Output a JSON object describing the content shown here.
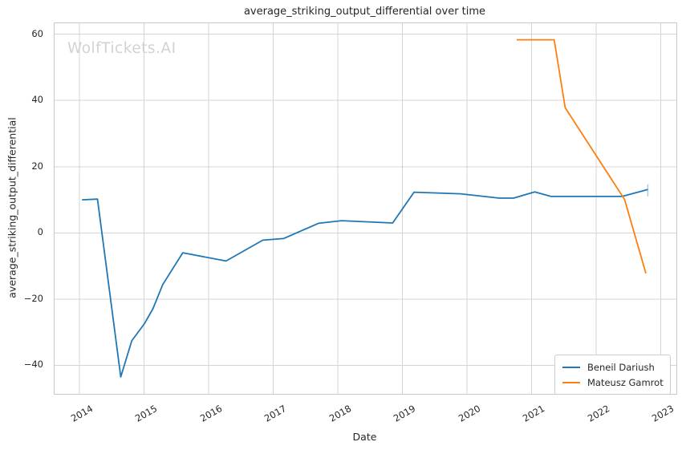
{
  "watermark": "WolfTickets.AI",
  "chart_data": {
    "type": "line",
    "title": "average_striking_output_differential over time",
    "xlabel": "Date",
    "ylabel": "average_striking_output_differential",
    "grid": true,
    "legend_position": "lower right",
    "xlim": [
      2013.615,
      2023.242
    ],
    "ylim": [
      -48.6,
      63.3
    ],
    "xticks": [
      {
        "v": 2014,
        "label": "2014"
      },
      {
        "v": 2015,
        "label": "2015"
      },
      {
        "v": 2016,
        "label": "2016"
      },
      {
        "v": 2017,
        "label": "2017"
      },
      {
        "v": 2018,
        "label": "2018"
      },
      {
        "v": 2019,
        "label": "2019"
      },
      {
        "v": 2020,
        "label": "2020"
      },
      {
        "v": 2021,
        "label": "2021"
      },
      {
        "v": 2022,
        "label": "2022"
      },
      {
        "v": 2023,
        "label": "2023"
      }
    ],
    "yticks": [
      {
        "v": 60,
        "label": "60"
      },
      {
        "v": 40,
        "label": "40"
      },
      {
        "v": 20,
        "label": "20"
      },
      {
        "v": 0,
        "label": "0"
      },
      {
        "v": -20,
        "label": "−20"
      },
      {
        "v": -40,
        "label": "−40"
      }
    ],
    "grid_color": "#d4d4d4",
    "series": [
      {
        "name": "Beneil Dariush",
        "color": "#1f77b4",
        "points": [
          [
            2014.04,
            10.0
          ],
          [
            2014.28,
            10.2
          ],
          [
            2014.64,
            -43.5
          ],
          [
            2014.81,
            -32.6
          ],
          [
            2015.01,
            -27.3
          ],
          [
            2015.14,
            -22.8
          ],
          [
            2015.29,
            -15.6
          ],
          [
            2015.6,
            -6.0
          ],
          [
            2016.27,
            -8.5
          ],
          [
            2016.84,
            -2.2
          ],
          [
            2017.16,
            -1.7
          ],
          [
            2017.7,
            2.9
          ],
          [
            2018.06,
            3.7
          ],
          [
            2018.85,
            3.0
          ],
          [
            2019.18,
            12.3
          ],
          [
            2019.9,
            11.8
          ],
          [
            2020.5,
            10.5
          ],
          [
            2020.72,
            10.5
          ],
          [
            2021.05,
            12.4
          ],
          [
            2021.3,
            11.0
          ],
          [
            2022.4,
            11.0
          ],
          [
            2022.8,
            13.1
          ]
        ],
        "end_cap": {
          "x": 2022.8,
          "y_low": 11.0,
          "y_high": 14.7,
          "color": "#a9cde5"
        }
      },
      {
        "name": "Mateusz Gamrot",
        "color": "#ff7f0e",
        "points": [
          [
            2020.77,
            58.3
          ],
          [
            2021.35,
            58.3
          ],
          [
            2021.52,
            37.8
          ],
          [
            2022.44,
            10.1
          ],
          [
            2022.77,
            -12.2
          ]
        ]
      }
    ]
  }
}
